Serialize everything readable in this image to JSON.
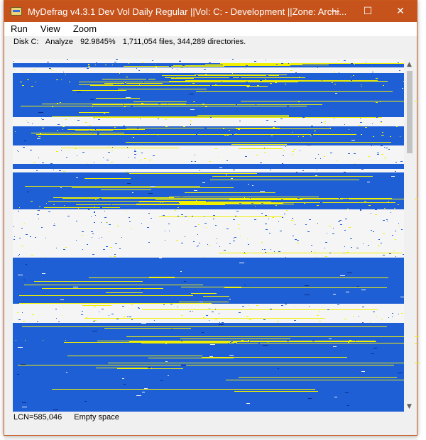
{
  "window": {
    "title": "MyDefrag v4.3.1    Dev Vol Daily Regular ||Vol: C: - Development ||Zone: Archi...",
    "icon": "mydefrag-app-icon",
    "minimize_glyph": "—",
    "maximize_glyph": "☐",
    "close_glyph": "✕"
  },
  "menu": {
    "items": [
      {
        "label": "Run"
      },
      {
        "label": "View"
      },
      {
        "label": "Zoom"
      }
    ]
  },
  "status_top": {
    "disk": "Disk C:",
    "action": "Analyze",
    "percent": "92.9845%",
    "counts": "1,711,054 files, 344,289 directories."
  },
  "disk_map": {
    "colors": {
      "used": "#1f5fd6",
      "fragmented": "#f0f000",
      "empty": "#f5f5f5",
      "dark": "#0a2a8a"
    }
  },
  "scrollbar": {
    "up_glyph": "▲",
    "down_glyph": "▼",
    "position_fraction": 0.0
  },
  "status_bottom": {
    "lcn": "LCN=585,046",
    "description": "Empty space"
  }
}
